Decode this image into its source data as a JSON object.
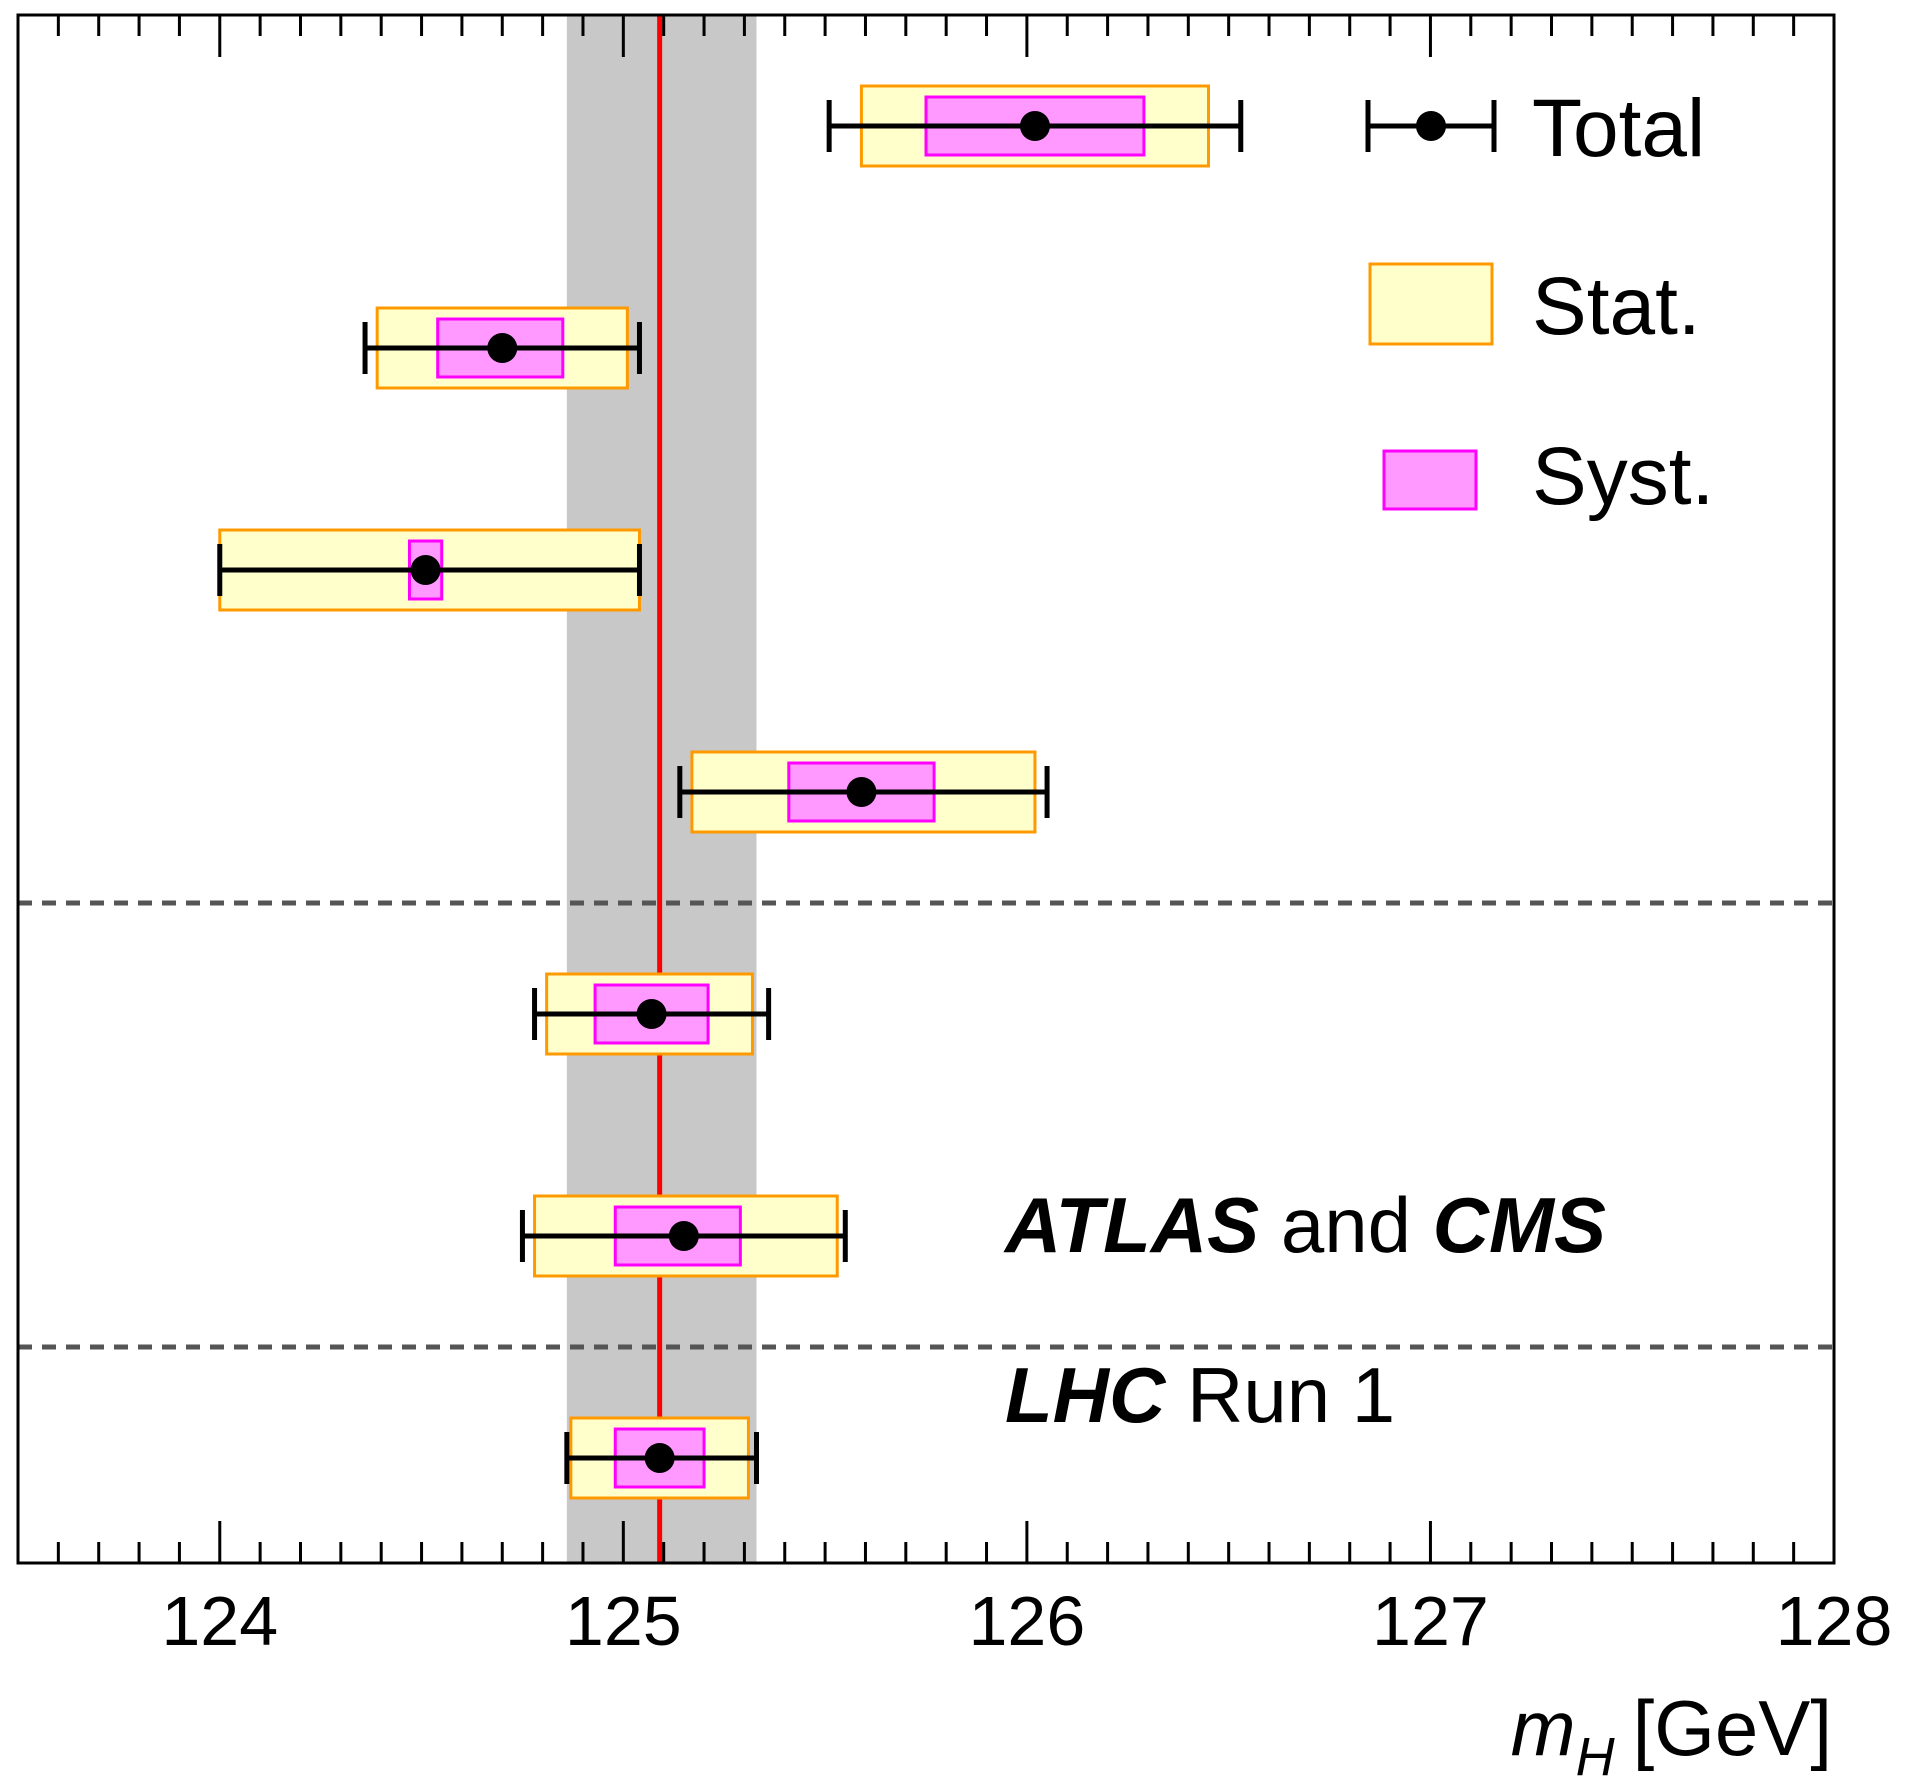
{
  "chart_data": {
    "type": "forest",
    "x_axis": {
      "label_symbol": "m",
      "label_subscript": "H",
      "label_unit": "[GeV]",
      "xlim": [
        123.5,
        128.0
      ],
      "major_ticks": [
        124,
        125,
        126,
        127,
        128
      ],
      "tick_labels": [
        "124",
        "125",
        "126",
        "127",
        "128"
      ]
    },
    "reference": {
      "value": 125.09,
      "band": [
        124.86,
        125.33
      ],
      "line_color": "#ff0000",
      "band_color": "#c8c8c8"
    },
    "measurements": [
      {
        "value": 126.02,
        "total": [
          125.51,
          126.53
        ],
        "stat": [
          125.59,
          126.45
        ],
        "syst": [
          125.75,
          126.29
        ]
      },
      {
        "value": 124.7,
        "total": [
          124.36,
          125.04
        ],
        "stat": [
          124.39,
          125.01
        ],
        "syst": [
          124.54,
          124.85
        ]
      },
      {
        "value": 124.51,
        "total": [
          124.0,
          125.04
        ],
        "stat": [
          124.0,
          125.04
        ],
        "syst": [
          124.47,
          124.55
        ]
      },
      {
        "value": 125.59,
        "total": [
          125.14,
          126.05
        ],
        "stat": [
          125.17,
          126.02
        ],
        "syst": [
          125.41,
          125.77
        ]
      },
      {
        "value": 125.07,
        "total": [
          124.78,
          125.36
        ],
        "stat": [
          124.81,
          125.32
        ],
        "syst": [
          124.93,
          125.21
        ]
      },
      {
        "value": 125.15,
        "total": [
          124.75,
          125.55
        ],
        "stat": [
          124.78,
          125.53
        ],
        "syst": [
          124.98,
          125.29
        ]
      },
      {
        "value": 125.09,
        "total": [
          124.86,
          125.33
        ],
        "stat": [
          124.87,
          125.31
        ],
        "syst": [
          124.98,
          125.2
        ]
      }
    ],
    "separators_after_rows": [
      4,
      6
    ],
    "legend": {
      "placement": "top-right",
      "entries": [
        {
          "label": "Total",
          "style": "errorbar"
        },
        {
          "label": "Stat.",
          "style": "stat-box"
        },
        {
          "label": "Syst.",
          "style": "syst-box"
        }
      ]
    },
    "annotation": {
      "line1_bold": "ATLAS",
      "line1_mid": "and",
      "line1_bold2": "CMS",
      "line2_bold": "LHC",
      "line2_rest": "Run 1"
    },
    "colors": {
      "stat_fill": "#ffffcc",
      "stat_edge": "#ff9900",
      "syst_fill": "#ff99ff",
      "syst_edge": "#ff00ff",
      "separator": "#555555",
      "marker": "#000000"
    }
  }
}
